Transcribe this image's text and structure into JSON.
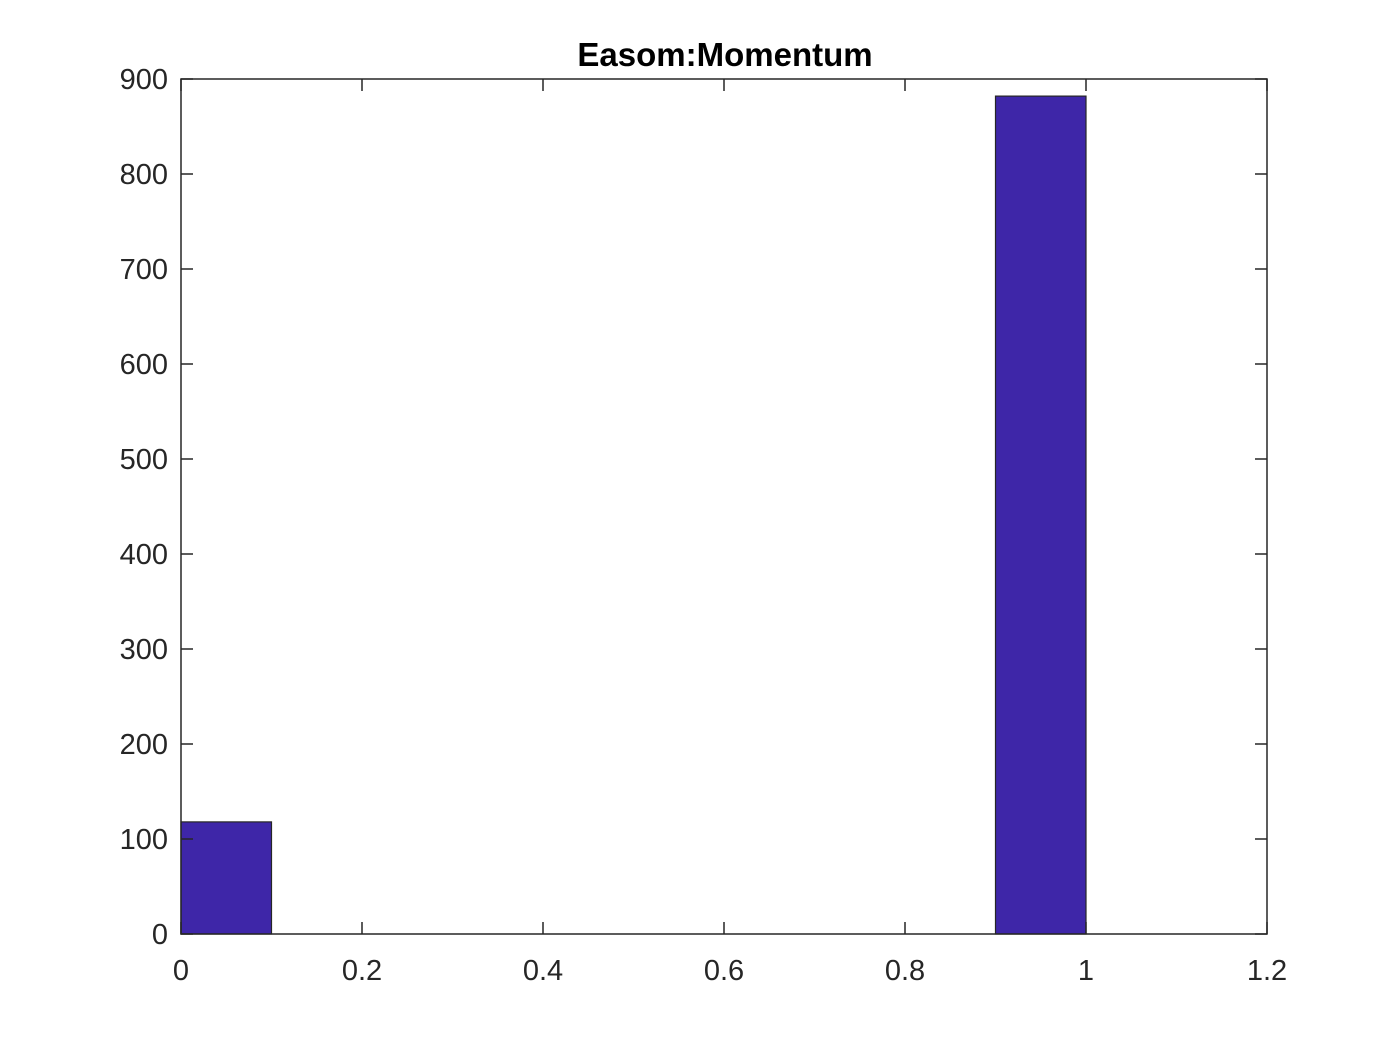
{
  "chart_data": {
    "type": "bar",
    "title": "Easom:Momentum",
    "xlabel": "",
    "ylabel": "",
    "xlim": [
      0,
      1.2
    ],
    "ylim": [
      0,
      900
    ],
    "xticks": [
      0,
      0.2,
      0.4,
      0.6,
      0.8,
      1,
      1.2
    ],
    "xtick_labels": [
      "0",
      "0.2",
      "0.4",
      "0.6",
      "0.8",
      "1",
      "1.2"
    ],
    "yticks": [
      0,
      100,
      200,
      300,
      400,
      500,
      600,
      700,
      800,
      900
    ],
    "ytick_labels": [
      "0",
      "100",
      "200",
      "300",
      "400",
      "500",
      "600",
      "700",
      "800",
      "900"
    ],
    "bins": [
      {
        "x0": 0.0,
        "x1": 0.1,
        "value": 118
      },
      {
        "x0": 0.1,
        "x1": 0.2,
        "value": 0
      },
      {
        "x0": 0.2,
        "x1": 0.3,
        "value": 0
      },
      {
        "x0": 0.3,
        "x1": 0.4,
        "value": 0
      },
      {
        "x0": 0.4,
        "x1": 0.5,
        "value": 0
      },
      {
        "x0": 0.5,
        "x1": 0.6,
        "value": 0
      },
      {
        "x0": 0.6,
        "x1": 0.7,
        "value": 0
      },
      {
        "x0": 0.7,
        "x1": 0.8,
        "value": 0
      },
      {
        "x0": 0.8,
        "x1": 0.9,
        "value": 0
      },
      {
        "x0": 0.9,
        "x1": 1.0,
        "value": 882
      }
    ],
    "bar_color": "#3e26a8",
    "edge_color": "#262626",
    "grid": false,
    "box": true
  }
}
